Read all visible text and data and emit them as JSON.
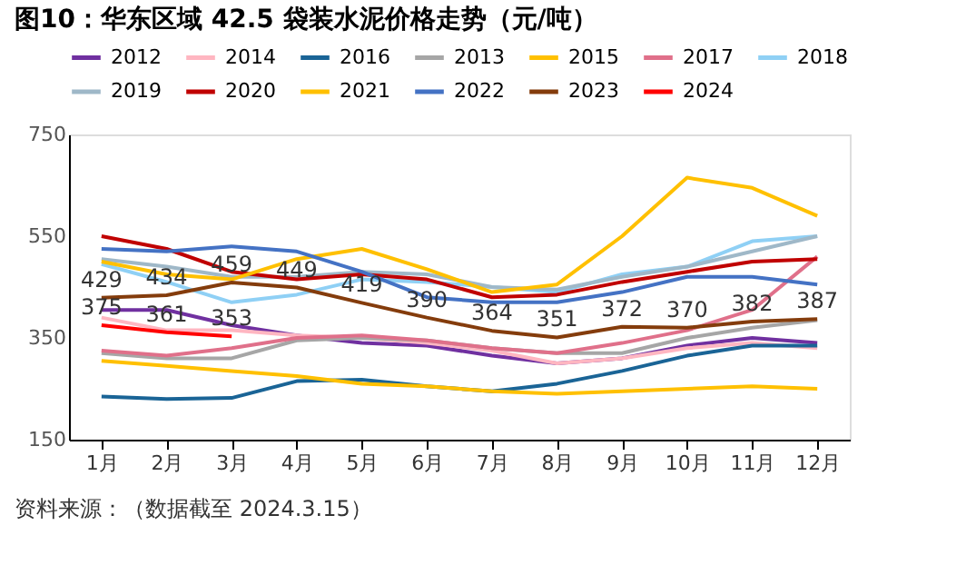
{
  "chart_data": {
    "type": "line",
    "title": "图10：华东区域 42.5 袋装水泥价格走势（元/吨）",
    "categories": [
      "1月",
      "2月",
      "3月",
      "4月",
      "5月",
      "6月",
      "7月",
      "8月",
      "9月",
      "10月",
      "11月",
      "12月"
    ],
    "series": [
      {
        "name": "2012",
        "color": "#7030a0",
        "values": [
          405,
          405,
          375,
          355,
          340,
          335,
          315,
          300,
          310,
          335,
          350,
          340
        ]
      },
      {
        "name": "2014",
        "color": "#ffb6c1",
        "values": [
          390,
          365,
          365,
          355,
          350,
          340,
          325,
          300,
          310,
          330,
          340,
          330
        ]
      },
      {
        "name": "2016",
        "color": "#1a6496",
        "values": [
          235,
          230,
          232,
          265,
          268,
          255,
          245,
          260,
          285,
          315,
          335,
          335
        ]
      },
      {
        "name": "2013",
        "color": "#a6a6a6",
        "values": [
          320,
          310,
          310,
          345,
          350,
          345,
          330,
          320,
          320,
          350,
          370,
          385
        ]
      },
      {
        "name": "2015",
        "color": "#ffc000",
        "values": [
          305,
          295,
          285,
          275,
          260,
          255,
          245,
          240,
          245,
          250,
          255,
          250
        ]
      },
      {
        "name": "2017",
        "color": "#e0708a",
        "values": [
          325,
          315,
          330,
          350,
          355,
          345,
          330,
          320,
          340,
          365,
          405,
          510
        ]
      },
      {
        "name": "2018",
        "color": "#8fd0f5",
        "values": [
          495,
          460,
          420,
          435,
          465,
          460,
          450,
          440,
          475,
          490,
          540,
          550
        ]
      },
      {
        "name": "2019",
        "color": "#9fb8c8",
        "values": [
          505,
          490,
          470,
          470,
          480,
          475,
          450,
          445,
          470,
          490,
          520,
          550
        ]
      },
      {
        "name": "2020",
        "color": "#c00000",
        "values": [
          550,
          525,
          480,
          465,
          475,
          465,
          430,
          435,
          460,
          480,
          500,
          505
        ]
      },
      {
        "name": "2021",
        "color": "#ffc000",
        "values": [
          500,
          475,
          465,
          505,
          525,
          485,
          440,
          455,
          550,
          665,
          645,
          590
        ]
      },
      {
        "name": "2022",
        "color": "#4472c4",
        "values": [
          525,
          520,
          530,
          520,
          480,
          430,
          420,
          420,
          440,
          470,
          470,
          455
        ]
      },
      {
        "name": "2023",
        "color": "#843c0c",
        "values": [
          429,
          434,
          459,
          449,
          419,
          390,
          364,
          351,
          372,
          370,
          382,
          387
        ],
        "value_labels": [
          "429",
          "434",
          "459",
          "449",
          "419",
          "390",
          "364",
          "351",
          "372",
          "370",
          "382",
          "387"
        ]
      },
      {
        "name": "2024",
        "color": "#ff0000",
        "values": [
          375,
          361,
          353,
          null,
          null,
          null,
          null,
          null,
          null,
          null,
          null,
          null
        ],
        "value_labels": [
          "375",
          "361",
          "353",
          null,
          null,
          null,
          null,
          null,
          null,
          null,
          null,
          null
        ]
      }
    ],
    "ylim": [
      150,
      750
    ],
    "yticks": [
      150,
      350,
      550,
      750
    ],
    "grid": false,
    "legend": "top",
    "marker": "none",
    "line_style": "solid",
    "annotations": [
      "资料来源：（数据截至 2024.3.15）"
    ]
  }
}
